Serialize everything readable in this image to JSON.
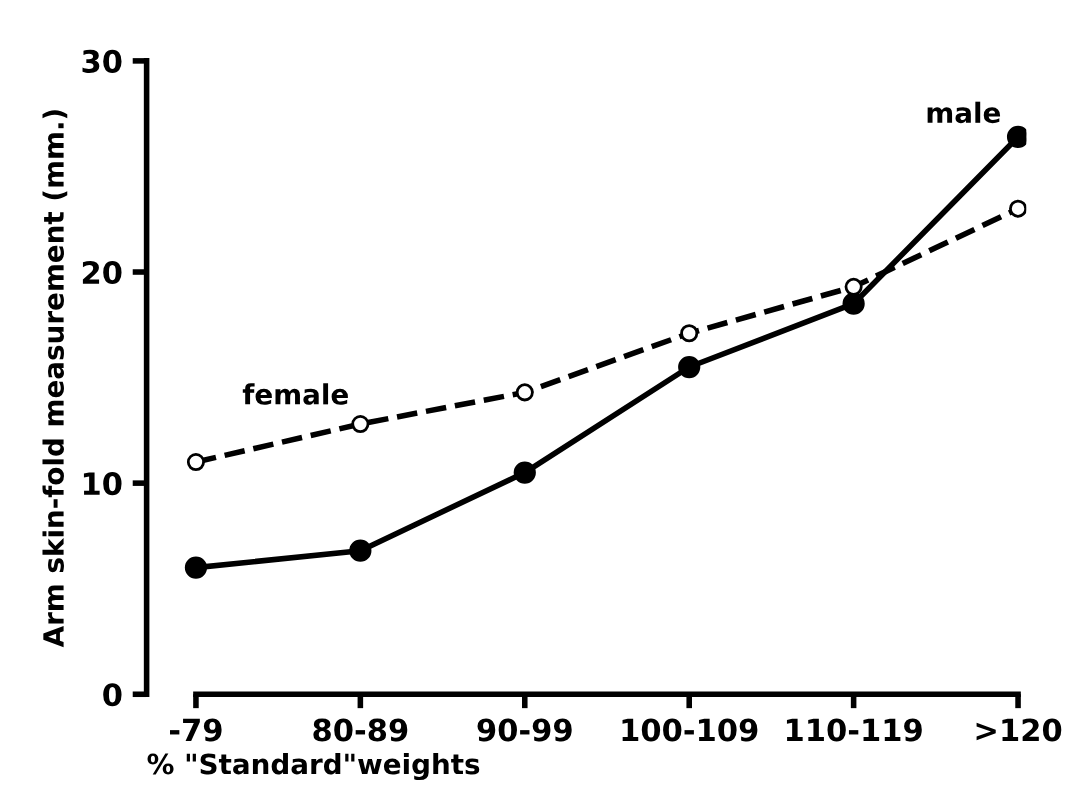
{
  "chart_data": {
    "type": "line",
    "xlabel": "% \"Standard\"weights",
    "ylabel": "Arm skin-fold measurement (mm.)",
    "categories": [
      "-79",
      "80-89",
      "90-99",
      "100-109",
      "110-119",
      ">120"
    ],
    "series": [
      {
        "name": "male",
        "color": "#000000",
        "values": [
          6.0,
          6.8,
          10.5,
          15.5,
          18.5,
          26.4
        ],
        "line_style": "solid",
        "marker": "circle"
      },
      {
        "name": "female",
        "color": "#000000",
        "values": [
          11.0,
          12.8,
          14.3,
          17.1,
          19.3,
          23.0
        ],
        "line_style": "dashed",
        "marker": "circle"
      }
    ],
    "ylim": [
      0,
      30
    ],
    "yticks": [
      0,
      10,
      20,
      30
    ],
    "grid": false,
    "legend": false
  }
}
